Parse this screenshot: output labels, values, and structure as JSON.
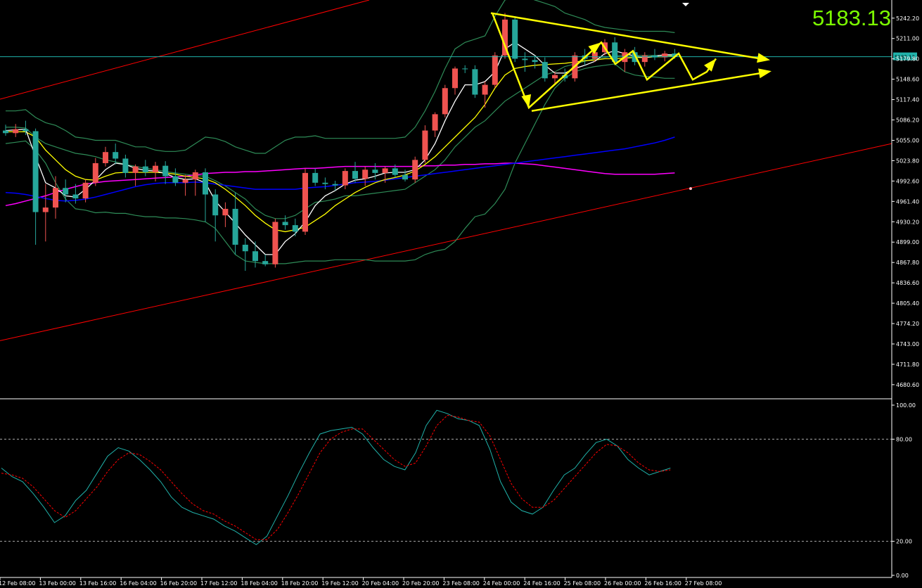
{
  "current_price_label": "5183.13",
  "price_tag": "5183.13",
  "colors": {
    "background": "#000000",
    "bull_candle": "#EF5350",
    "bear_candle": "#26A69A",
    "bollinger": "#2E8B57",
    "ma_white": "#FFFFFF",
    "ma_yellow": "#FFFF00",
    "ma_blue": "#0000FF",
    "ma_magenta": "#FF00FF",
    "channel_red": "#FF0000",
    "pattern_yellow": "#FFFF00",
    "stoch_main": "#20B2AA",
    "stoch_signal": "#FF0000",
    "price_line": "#20B2AA"
  },
  "chart_data": [
    {
      "type": "candlestick",
      "title": "",
      "y_ticks": [
        "5242.20",
        "5211.00",
        "5179.80",
        "5148.60",
        "5117.40",
        "5086.20",
        "5055.00",
        "5023.80",
        "4992.60",
        "4961.40",
        "4930.20",
        "4899.00",
        "4867.80",
        "4836.60",
        "4805.40",
        "4774.20",
        "4743.00",
        "4711.80",
        "4680.60"
      ],
      "ylim": [
        4660,
        5270
      ],
      "x_ticks": [
        "12 Feb 08:00",
        "13 Feb 00:00",
        "13 Feb 16:00",
        "16 Feb 04:00",
        "16 Feb 20:00",
        "17 Feb 12:00",
        "18 Feb 04:00",
        "18 Feb 20:00",
        "19 Feb 12:00",
        "20 Feb 04:00",
        "20 Feb 20:00",
        "23 Feb 08:00",
        "24 Feb 00:00",
        "24 Feb 16:00",
        "25 Feb 08:00",
        "26 Feb 00:00",
        "26 Feb 16:00",
        "27 Feb 08:00"
      ],
      "current_price": 5183.13,
      "candles": [
        [
          5070,
          5079,
          5062,
          5066
        ],
        [
          5066,
          5080,
          5060,
          5072
        ],
        [
          5072,
          5085,
          5063,
          5069
        ],
        [
          5069,
          5073,
          4895,
          4945
        ],
        [
          4945,
          4988,
          4900,
          4952
        ],
        [
          4952,
          5000,
          4935,
          4982
        ],
        [
          4982,
          4995,
          4960,
          4972
        ],
        [
          4972,
          4988,
          4958,
          4966
        ],
        [
          4966,
          4995,
          4960,
          4990
        ],
        [
          4990,
          5028,
          4985,
          5020
        ],
        [
          5020,
          5045,
          5015,
          5037
        ],
        [
          5037,
          5050,
          5018,
          5027
        ],
        [
          5027,
          5033,
          4998,
          5005
        ],
        [
          5005,
          5018,
          4985,
          5015
        ],
        [
          5015,
          5025,
          5000,
          5006
        ],
        [
          5006,
          5022,
          4992,
          5016
        ],
        [
          5016,
          5023,
          4988,
          5000
        ],
        [
          5000,
          5012,
          4985,
          4990
        ],
        [
          4990,
          5002,
          4970,
          4995
        ],
        [
          4995,
          5010,
          4970,
          5006
        ],
        [
          5006,
          5012,
          4930,
          4972
        ],
        [
          4972,
          4980,
          4900,
          4940
        ],
        [
          4940,
          4960,
          4922,
          4950
        ],
        [
          4950,
          4975,
          4880,
          4895
        ],
        [
          4895,
          4905,
          4855,
          4885
        ],
        [
          4885,
          4900,
          4860,
          4870
        ],
        [
          4870,
          4880,
          4862,
          4865
        ],
        [
          4865,
          4935,
          4860,
          4930
        ],
        [
          4930,
          4940,
          4918,
          4925
        ],
        [
          4925,
          4935,
          4908,
          4915
        ],
        [
          4915,
          5012,
          4910,
          5005
        ],
        [
          5005,
          5012,
          4985,
          4990
        ],
        [
          4990,
          4998,
          4980,
          4988
        ],
        [
          4988,
          4993,
          4978,
          4986
        ],
        [
          4986,
          5012,
          4980,
          5008
        ],
        [
          5008,
          5022,
          4990,
          4996
        ],
        [
          4996,
          5015,
          4985,
          5010
        ],
        [
          5010,
          5020,
          4995,
          5005
        ],
        [
          5005,
          5015,
          4990,
          5012
        ],
        [
          5012,
          5018,
          4998,
          5002
        ],
        [
          5002,
          5010,
          4992,
          4995
        ],
        [
          4995,
          5030,
          4990,
          5025
        ],
        [
          5025,
          5078,
          5020,
          5070
        ],
        [
          5070,
          5098,
          5060,
          5095
        ],
        [
          5095,
          5140,
          5090,
          5135
        ],
        [
          5135,
          5168,
          5125,
          5165
        ],
        [
          5165,
          5170,
          5158,
          5164
        ],
        [
          5164,
          5170,
          5120,
          5125
        ],
        [
          5125,
          5145,
          5105,
          5140
        ],
        [
          5140,
          5190,
          5135,
          5185
        ],
        [
          5185,
          5250,
          5180,
          5240
        ],
        [
          5240,
          5245,
          5175,
          5180
        ],
        [
          5180,
          5190,
          5160,
          5178
        ],
        [
          5178,
          5185,
          5165,
          5175
        ],
        [
          5175,
          5182,
          5145,
          5150
        ],
        [
          5150,
          5160,
          5140,
          5155
        ],
        [
          5155,
          5165,
          5145,
          5150
        ],
        [
          5150,
          5190,
          5145,
          5185
        ],
        [
          5185,
          5195,
          5170,
          5180
        ],
        [
          5180,
          5200,
          5175,
          5190
        ],
        [
          5190,
          5210,
          5185,
          5205
        ],
        [
          5205,
          5213,
          5170,
          5175
        ],
        [
          5175,
          5195,
          5160,
          5190
        ],
        [
          5190,
          5198,
          5170,
          5175
        ],
        [
          5175,
          5190,
          5168,
          5185
        ],
        [
          5185,
          5195,
          5178,
          5182
        ],
        [
          5182,
          5192,
          5176,
          5188
        ],
        [
          5188,
          5195,
          5180,
          5183
        ]
      ],
      "candle_order": "open, high, low, close",
      "overlays": {
        "bollinger_upper": [
          5100,
          5100,
          5102,
          5090,
          5082,
          5078,
          5070,
          5060,
          5058,
          5055,
          5055,
          5055,
          5050,
          5045,
          5045,
          5040,
          5038,
          5038,
          5040,
          5050,
          5060,
          5058,
          5053,
          5045,
          5040,
          5035,
          5035,
          5045,
          5055,
          5060,
          5060,
          5062,
          5058,
          5058,
          5058,
          5058,
          5058,
          5058,
          5058,
          5058,
          5060,
          5075,
          5100,
          5130,
          5165,
          5195,
          5205,
          5210,
          5215,
          5245,
          5270,
          5275,
          5275,
          5270,
          5265,
          5260,
          5250,
          5245,
          5240,
          5232,
          5228,
          5226,
          5224,
          5222,
          5222,
          5222,
          5222,
          5220
        ],
        "bollinger_lower": [
          5050,
          5052,
          5054,
          5040,
          5020,
          4990,
          4965,
          4950,
          4948,
          4944,
          4945,
          4943,
          4943,
          4940,
          4938,
          4938,
          4936,
          4936,
          4935,
          4933,
          4930,
          4920,
          4900,
          4880,
          4870,
          4868,
          4866,
          4866,
          4866,
          4868,
          4870,
          4870,
          4870,
          4872,
          4872,
          4872,
          4872,
          4870,
          4870,
          4870,
          4870,
          4872,
          4880,
          4885,
          4888,
          4900,
          4920,
          4938,
          4942,
          4958,
          4980,
          5020,
          5050,
          5080,
          5110,
          5135,
          5150,
          5160,
          5165,
          5168,
          5170,
          5172,
          5160,
          5155,
          5153,
          5152,
          5150,
          5150
        ],
        "bollinger_mid": [
          5075,
          5075,
          5074,
          5060,
          5050,
          5045,
          5040,
          5035,
          5033,
          5030,
          5025,
          5022,
          5018,
          5015,
          5012,
          5010,
          5007,
          5005,
          5003,
          5001,
          5000,
          4993,
          4985,
          4975,
          4965,
          4950,
          4940,
          4935,
          4935,
          4940,
          4950,
          4960,
          4962,
          4965,
          4970,
          4970,
          4972,
          4974,
          4976,
          4978,
          4980,
          4990,
          5000,
          5010,
          5025,
          5045,
          5060,
          5075,
          5085,
          5100,
          5115,
          5125,
          5135,
          5145,
          5155,
          5160,
          5168,
          5172,
          5176,
          5180,
          5182,
          5184,
          5186,
          5185,
          5185,
          5185,
          5185,
          5185
        ],
        "ma_white": [
          5070,
          5071,
          5072,
          5030,
          4990,
          4982,
          4970,
          4968,
          4980,
          4994,
          5010,
          5020,
          5018,
          5012,
          5009,
          5008,
          5004,
          4998,
          4995,
          4996,
          4990,
          4962,
          4945,
          4928,
          4910,
          4895,
          4880,
          4880,
          4900,
          4912,
          4930,
          4955,
          4970,
          4978,
          4988,
          4994,
          4996,
          5000,
          5005,
          5006,
          5006,
          5010,
          5025,
          5050,
          5085,
          5115,
          5140,
          5140,
          5145,
          5160,
          5195,
          5205,
          5195,
          5185,
          5170,
          5158,
          5158,
          5165,
          5170,
          5176,
          5188,
          5192,
          5188,
          5184,
          5182,
          5184,
          5186,
          5186
        ],
        "ma_yellow": [
          5068,
          5068,
          5068,
          5060,
          5040,
          5025,
          5010,
          5000,
          4995,
          4994,
          5000,
          5005,
          5006,
          5006,
          5006,
          5006,
          5005,
          5003,
          5000,
          4998,
          4996,
          4990,
          4980,
          4968,
          4955,
          4940,
          4928,
          4918,
          4915,
          4918,
          4922,
          4932,
          4942,
          4955,
          4965,
          4975,
          4983,
          4990,
          4995,
          4998,
          5002,
          5008,
          5018,
          5030,
          5045,
          5060,
          5075,
          5090,
          5110,
          5135,
          5155,
          5165,
          5168,
          5170,
          5171,
          5172,
          5173,
          5175,
          5177,
          5178,
          5180,
          5180,
          5181,
          5182,
          5182,
          5183,
          5183,
          5184
        ],
        "ma_blue": [
          4975,
          4974,
          4972,
          4969,
          4966,
          4963,
          4962,
          4963,
          4965,
          4968,
          4972,
          4976,
          4980,
          4984,
          4987,
          4989,
          4990,
          4990,
          4990,
          4991,
          4990,
          4988,
          4986,
          4984,
          4982,
          4980,
          4980,
          4980,
          4980,
          4980,
          4982,
          4983,
          4984,
          4986,
          4988,
          4990,
          4991,
          4992,
          4994,
          4996,
          4998,
          5000,
          5002,
          5004,
          5006,
          5008,
          5010,
          5012,
          5014,
          5016,
          5018,
          5020,
          5022,
          5024,
          5026,
          5028,
          5030,
          5032,
          5034,
          5036,
          5038,
          5040,
          5042,
          5045,
          5048,
          5051,
          5055,
          5060
        ],
        "ma_magenta": [
          4955,
          4958,
          4962,
          4966,
          4970,
          4975,
          4980,
          4984,
          4988,
          4990,
          4992,
          4993,
          4994,
          4995,
          4996,
          4997,
          4998,
          4999,
          5000,
          5002,
          5004,
          5005,
          5006,
          5006,
          5007,
          5007,
          5008,
          5009,
          5010,
          5011,
          5012,
          5012,
          5013,
          5014,
          5015,
          5015,
          5015,
          5015,
          5015,
          5015,
          5015,
          5015,
          5016,
          5016,
          5017,
          5017,
          5018,
          5018,
          5019,
          5019,
          5020,
          5020,
          5019,
          5018,
          5016,
          5014,
          5012,
          5010,
          5008,
          5006,
          5004,
          5003,
          5003,
          5003,
          5003,
          5003,
          5004,
          5005
        ]
      },
      "pattern_annotations": "converging yellow triangle lines with zig-zag wave arrows"
    },
    {
      "type": "line",
      "title": "",
      "y_ticks": [
        "100.00",
        "80.00",
        "20.00",
        "0.00"
      ],
      "ylim": [
        0,
        100
      ],
      "levels": [
        80,
        20
      ],
      "series": [
        {
          "values": [
            63,
            58,
            55,
            48,
            40,
            31,
            35,
            44,
            50,
            60,
            70,
            75,
            73,
            68,
            62,
            55,
            46,
            40,
            37,
            35,
            33,
            29,
            26,
            22,
            18,
            23,
            35,
            47,
            60,
            72,
            83,
            85,
            86,
            87,
            83,
            75,
            68,
            64,
            62,
            72,
            88,
            97,
            95,
            92,
            91,
            88,
            74,
            55,
            43,
            38,
            36,
            40,
            50,
            59,
            63,
            71,
            78,
            80,
            76,
            68,
            63,
            59,
            61,
            63
          ]
        },
        {
          "values": [
            60,
            59,
            57,
            52,
            45,
            38,
            34,
            38,
            45,
            52,
            61,
            68,
            72,
            71,
            67,
            62,
            55,
            48,
            42,
            38,
            36,
            32,
            29,
            25,
            21,
            21,
            27,
            37,
            48,
            60,
            72,
            80,
            84,
            86,
            86,
            80,
            74,
            68,
            64,
            66,
            76,
            88,
            94,
            93,
            91,
            90,
            82,
            68,
            54,
            45,
            40,
            40,
            44,
            51,
            58,
            65,
            72,
            77,
            76,
            72,
            66,
            62,
            61,
            62
          ]
        }
      ]
    }
  ]
}
